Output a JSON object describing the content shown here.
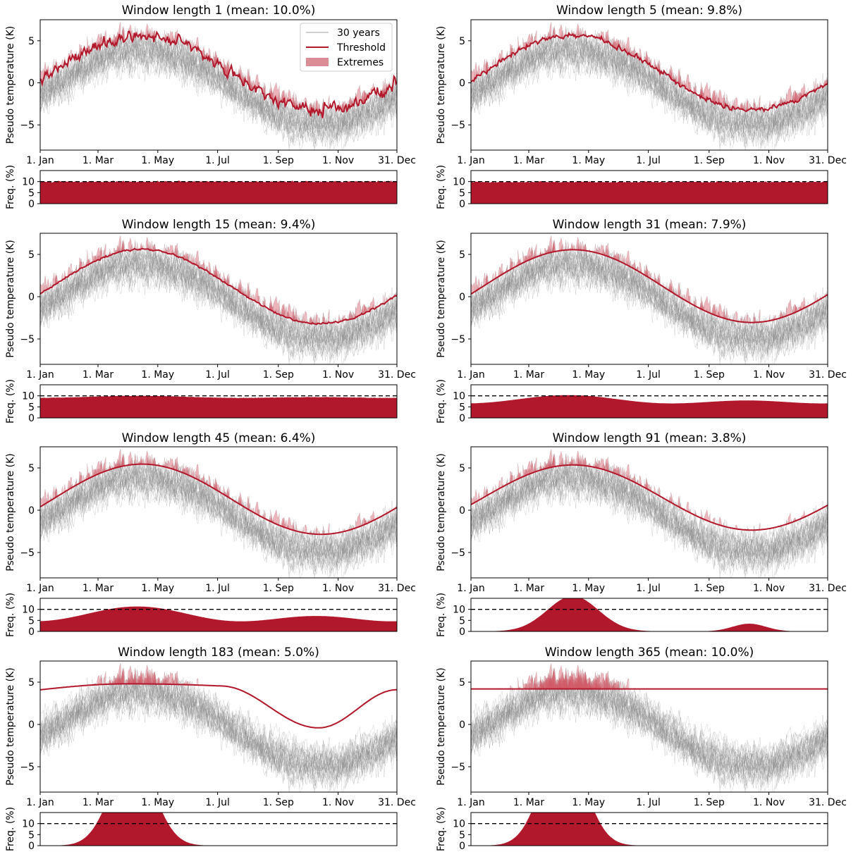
{
  "figure": {
    "ylabel_main": "Pseudo temperature (K)",
    "ylabel_freq": "Freq. (%)",
    "month_ticks": [
      "1. Jan",
      "1. Mar",
      "1. May",
      "1. Jul",
      "1. Sep",
      "1. Nov",
      "31. Dec"
    ],
    "legend": {
      "entries": [
        "30 years",
        "Threshold",
        "Extremes"
      ],
      "colors": [
        "#a0a0a0",
        "#b2182b",
        "#dc8c96"
      ]
    },
    "colors": {
      "threshold": "#b2182b",
      "extremes": "#d25a68",
      "years": "#808080",
      "freq_fill": "#b2182b"
    }
  },
  "chart_data": [
    {
      "type": "line",
      "title": "Window length 1 (mean: 10.0%)",
      "window": 1,
      "xlim": [
        1,
        365
      ],
      "ylim": [
        -8,
        7.5
      ],
      "yticks": [
        -5,
        0,
        5
      ],
      "n_years": 30,
      "threshold": {
        "mean": 1.2,
        "amplitude": 4.45,
        "peak_day": 105,
        "noise": 0.35
      },
      "freq": {
        "ylim": [
          0,
          15
        ],
        "yticks": [
          0,
          5,
          10
        ],
        "reference": 10,
        "mean_pct": 10.0,
        "profile": "flat",
        "base": 10.0,
        "amplitude": 0,
        "noise": 0.2
      },
      "legend": "upper-right"
    },
    {
      "type": "line",
      "title": "Window length 5 (mean: 9.8%)",
      "window": 5,
      "xlim": [
        1,
        365
      ],
      "ylim": [
        -8,
        7.5
      ],
      "yticks": [
        -5,
        0,
        5
      ],
      "n_years": 30,
      "threshold": {
        "mean": 1.2,
        "amplitude": 4.45,
        "peak_day": 105,
        "noise": 0.14
      },
      "freq": {
        "ylim": [
          0,
          15
        ],
        "yticks": [
          0,
          5,
          10
        ],
        "reference": 10,
        "mean_pct": 9.8,
        "profile": "flat",
        "base": 9.8,
        "amplitude": 0,
        "noise": 0.15
      }
    },
    {
      "type": "line",
      "title": "Window length 15 (mean: 9.4%)",
      "window": 15,
      "xlim": [
        1,
        365
      ],
      "ylim": [
        -8,
        7.5
      ],
      "yticks": [
        -5,
        0,
        5
      ],
      "n_years": 30,
      "threshold": {
        "mean": 1.2,
        "amplitude": 4.4,
        "peak_day": 105,
        "noise": 0.05
      },
      "freq": {
        "ylim": [
          0,
          15
        ],
        "yticks": [
          0,
          5,
          10
        ],
        "reference": 10,
        "mean_pct": 9.4,
        "profile": "cos",
        "base": 9.4,
        "amplitude": 0.6,
        "noise": 0.05
      }
    },
    {
      "type": "line",
      "title": "Window length 31 (mean: 7.9%)",
      "window": 31,
      "xlim": [
        1,
        365
      ],
      "ylim": [
        -8,
        7.5
      ],
      "yticks": [
        -5,
        0,
        5
      ],
      "n_years": 30,
      "threshold": {
        "mean": 1.25,
        "amplitude": 4.3,
        "peak_day": 105,
        "noise": 0
      },
      "freq": {
        "ylim": [
          0,
          15
        ],
        "yticks": [
          0,
          5,
          10
        ],
        "reference": 10,
        "mean_pct": 7.9,
        "profile": "cos",
        "base": 7.9,
        "amplitude": 2.4,
        "noise": 0
      }
    },
    {
      "type": "line",
      "title": "Window length 45 (mean: 6.4%)",
      "window": 45,
      "xlim": [
        1,
        365
      ],
      "ylim": [
        -8,
        7.5
      ],
      "yticks": [
        -5,
        0,
        5
      ],
      "n_years": 30,
      "threshold": {
        "mean": 1.3,
        "amplitude": 4.15,
        "peak_day": 105,
        "noise": 0
      },
      "freq": {
        "ylim": [
          0,
          15
        ],
        "yticks": [
          0,
          5,
          10
        ],
        "reference": 10,
        "mean_pct": 6.4,
        "profile": "cos",
        "base": 7.0,
        "amplitude": 4.3,
        "noise": 0
      }
    },
    {
      "type": "line",
      "title": "Window length 91 (mean: 3.8%)",
      "window": 91,
      "xlim": [
        1,
        365
      ],
      "ylim": [
        -8,
        7.5
      ],
      "yticks": [
        -5,
        0,
        5
      ],
      "n_years": 30,
      "threshold": {
        "mean": 1.5,
        "amplitude": 3.85,
        "peak_day": 105,
        "noise": 0
      },
      "freq": {
        "ylim": [
          0,
          15
        ],
        "yticks": [
          0,
          5,
          10
        ],
        "reference": 10,
        "mean_pct": 3.8,
        "profile": "bumps",
        "peaks": [
          {
            "day": 105,
            "height": 16,
            "width": 26
          },
          {
            "day": 285,
            "height": 3.5,
            "width": 17
          }
        ]
      }
    },
    {
      "type": "line",
      "title": "Window length 183 (mean: 5.0%)",
      "window": 183,
      "xlim": [
        1,
        365
      ],
      "ylim": [
        -8,
        7.5
      ],
      "yticks": [
        -5,
        0,
        5
      ],
      "n_years": 30,
      "threshold": {
        "mean": 2.6,
        "amplitude": 2.2,
        "peak_day": 105,
        "shape": "flat_top_dip",
        "top": 4.8,
        "bottom": -0.4,
        "start": 4.1
      },
      "freq": {
        "ylim": [
          0,
          15
        ],
        "yticks": [
          0,
          5,
          10
        ],
        "reference": 10,
        "mean_pct": 5.0,
        "profile": "bumps",
        "peaks": [
          {
            "day": 95,
            "height": 40,
            "width": 22
          }
        ]
      }
    },
    {
      "type": "line",
      "title": "Window length 365 (mean: 10.0%)",
      "window": 365,
      "xlim": [
        1,
        365
      ],
      "ylim": [
        -8,
        7.5
      ],
      "yticks": [
        -5,
        0,
        5
      ],
      "n_years": 30,
      "threshold": {
        "mean": 4.2,
        "amplitude": 0,
        "peak_day": 105,
        "noise": 0
      },
      "freq": {
        "ylim": [
          0,
          15
        ],
        "yticks": [
          0,
          5,
          10
        ],
        "reference": 10,
        "mean_pct": 10.0,
        "profile": "bumps",
        "peaks": [
          {
            "day": 95,
            "height": 45,
            "width": 22
          }
        ]
      }
    }
  ]
}
